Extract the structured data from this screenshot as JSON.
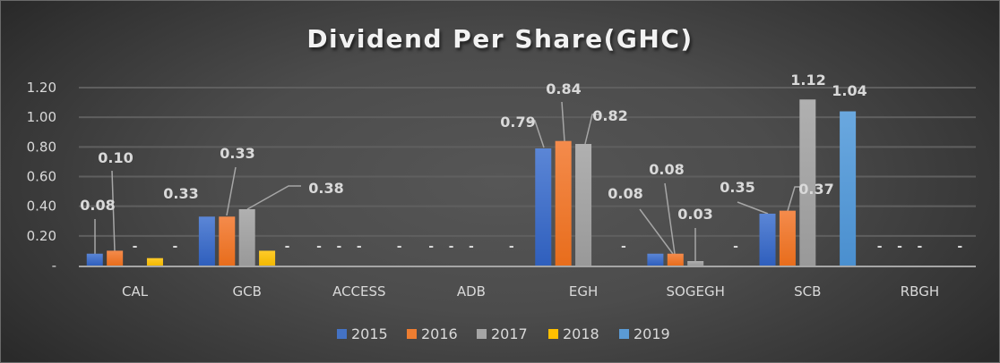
{
  "chart_data": {
    "type": "bar",
    "title": "Dividend Per Share(GHC)",
    "xlabel": "",
    "ylabel": "",
    "ylim": [
      0,
      1.2
    ],
    "yticks": [
      0,
      0.2,
      0.4,
      0.6,
      0.8,
      1.0,
      1.2
    ],
    "ytick_labels": [
      "-",
      "0.20",
      "0.40",
      "0.60",
      "0.80",
      "1.00",
      "1.20"
    ],
    "grid": true,
    "legend_position": "bottom",
    "categories": [
      "CAL",
      "GCB",
      "ACCESS",
      "ADB",
      "EGH",
      "SOGEGH",
      "SCB",
      "RBGH"
    ],
    "series": [
      {
        "name": "2015",
        "color": "#4472c4",
        "values": [
          0.08,
          0.33,
          0,
          0,
          0.79,
          0.08,
          0.35,
          0
        ],
        "labels": [
          "0.08",
          "0.33",
          "-",
          "-",
          "0.79",
          "0.08",
          "0.35",
          "-"
        ]
      },
      {
        "name": "2016",
        "color": "#ed7d31",
        "values": [
          0.1,
          0.33,
          0,
          0,
          0.84,
          0.08,
          0.37,
          0
        ],
        "labels": [
          "0.10",
          "0.33",
          "-",
          "-",
          "0.84",
          "0.08",
          "0.37",
          "-"
        ]
      },
      {
        "name": "2017",
        "color": "#a5a5a5",
        "values": [
          0,
          0.38,
          0,
          0,
          0.82,
          0.03,
          1.12,
          0
        ],
        "labels": [
          "-",
          "0.38",
          "-",
          "-",
          "0.82",
          "0.03",
          "1.12",
          "-"
        ]
      },
      {
        "name": "2018",
        "color": "#ffc000",
        "values": [
          0.05,
          0.1,
          0,
          0,
          0,
          0,
          0,
          0
        ],
        "labels": [
          "",
          "",
          "",
          "",
          "",
          "",
          "",
          ""
        ]
      },
      {
        "name": "2019",
        "color": "#5b9bd5",
        "values": [
          0,
          0,
          0,
          0,
          0,
          0,
          1.04,
          0
        ],
        "labels": [
          "-",
          "-",
          "-",
          "-",
          "-",
          "-",
          "1.04",
          "-"
        ]
      }
    ]
  }
}
